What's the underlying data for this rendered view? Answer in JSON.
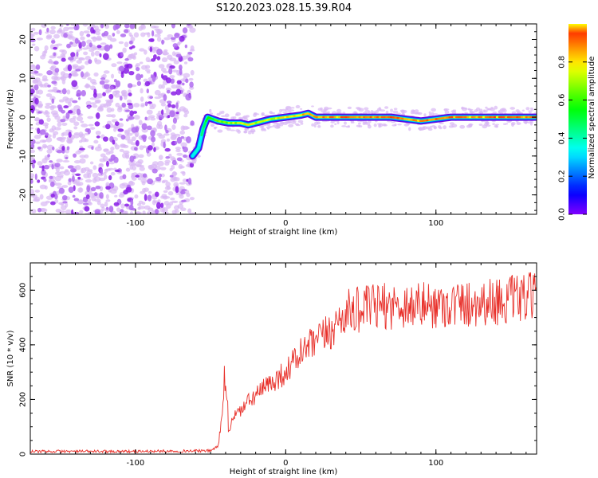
{
  "title": "S120.2023.028.15.39.R04",
  "chart_data": [
    {
      "type": "heatmap",
      "title": "S120.2023.028.15.39.R04",
      "xlabel": "Height of straight line (km)",
      "ylabel": "Frequency (Hz)",
      "xlim": [
        -170,
        167
      ],
      "ylim": [
        -25,
        24
      ],
      "xticks": [
        -100,
        0,
        100
      ],
      "xtick_labels": [
        "-100",
        "0",
        "100"
      ],
      "yticks": [
        -20,
        -10,
        0,
        10,
        20
      ],
      "ytick_labels": [
        "-20",
        "-10",
        "0",
        "10",
        "20"
      ],
      "colorbar": {
        "label": "Normalized spectral amplitude",
        "range": [
          0.0,
          1.0
        ],
        "ticks": [
          0.0,
          0.2,
          0.4,
          0.6,
          0.8
        ],
        "tick_labels": [
          "0.0",
          "0.2",
          "0.4",
          "0.6",
          "0.8"
        ]
      },
      "noise_region": {
        "x": [
          -170,
          -62
        ],
        "amplitude": [
          0.1,
          0.4
        ]
      },
      "signal_ridge": {
        "x": [
          -62,
          -58,
          -55,
          -52,
          -45,
          -38,
          -30,
          -25,
          -20,
          -10,
          0,
          10,
          15,
          20,
          30,
          50,
          70,
          90,
          110,
          130,
          150,
          167
        ],
        "y": [
          -10,
          -8,
          -3,
          0,
          -1,
          -1.5,
          -1.5,
          -2,
          -1.5,
          -0.5,
          0,
          0.5,
          1,
          0,
          0,
          0,
          0,
          -1,
          0,
          0,
          0,
          0
        ],
        "amplitude": [
          0.3,
          0.35,
          0.45,
          0.55,
          0.6,
          0.7,
          0.7,
          0.75,
          0.7,
          0.7,
          0.8,
          0.8,
          0.85,
          0.85,
          0.85,
          0.9,
          0.9,
          0.85,
          0.95,
          0.95,
          0.95,
          0.9
        ]
      }
    },
    {
      "type": "line",
      "xlabel": "Height of straight line (km)",
      "ylabel": "SNR (10 * v/v)",
      "xlim": [
        -170,
        167
      ],
      "ylim": [
        0,
        700
      ],
      "xticks": [
        -100,
        0,
        100
      ],
      "xtick_labels": [
        "-100",
        "0",
        "100"
      ],
      "yticks": [
        0,
        200,
        400,
        600
      ],
      "ytick_labels": [
        "0",
        "200",
        "400",
        "600"
      ],
      "color": "#e8302a",
      "series": [
        {
          "x": [
            -170,
            -100,
            -50,
            -45,
            -42,
            -40,
            -38,
            -35,
            -30,
            -25,
            -20,
            -10,
            0,
            10,
            20,
            30,
            40,
            60,
            80,
            100,
            120,
            140,
            160,
            167
          ],
          "values": [
            10,
            10,
            12,
            30,
            150,
            270,
            80,
            140,
            160,
            190,
            215,
            260,
            300,
            370,
            410,
            450,
            520,
            540,
            545,
            545,
            550,
            560,
            570,
            580
          ]
        }
      ]
    }
  ]
}
